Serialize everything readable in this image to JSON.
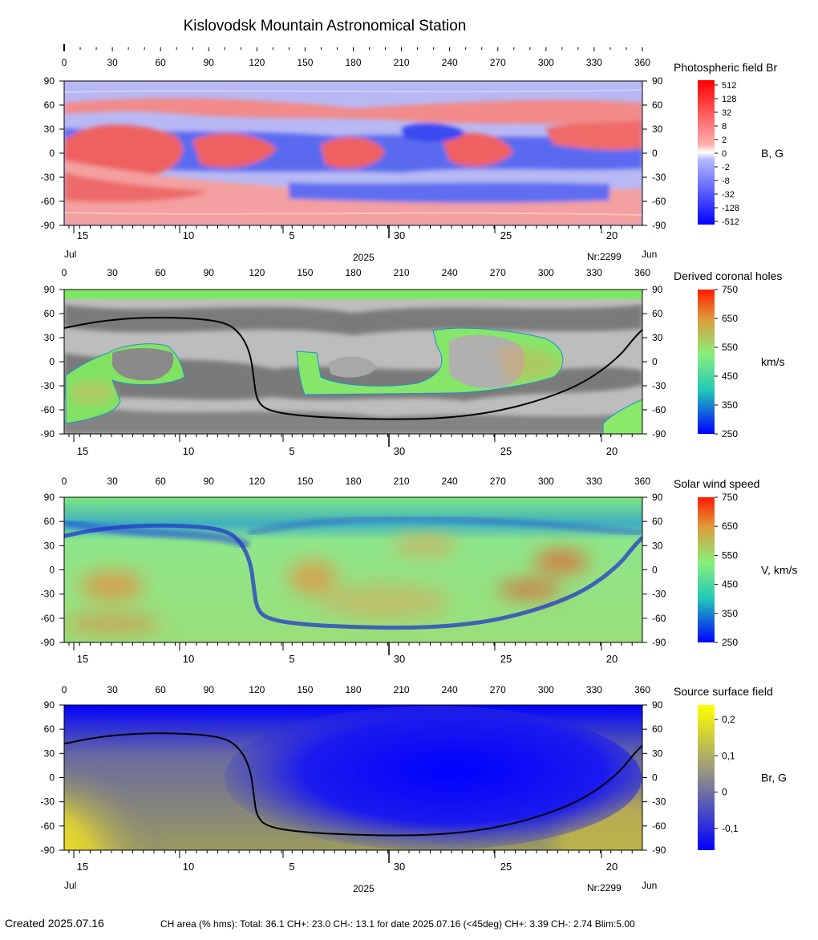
{
  "title": "Kislovodsk Mountain Astronomical Station",
  "chart_data": {
    "type": "heatmap",
    "x_top_ticks": [
      "0",
      "30",
      "60",
      "90",
      "120",
      "150",
      "180",
      "210",
      "240",
      "270",
      "300",
      "330",
      "360"
    ],
    "y_ticks": [
      "90",
      "60",
      "30",
      "0",
      "-30",
      "-60",
      "-90"
    ],
    "date_ticks": [
      "15",
      "10",
      "5",
      "30",
      "25",
      "20"
    ],
    "date_left": "Jul",
    "date_right": "Jun",
    "year": "2025",
    "rotation": "Nr:2299",
    "panels": [
      {
        "title": "Photospheric field Br",
        "unit": "B, G",
        "colorbar_ticks": [
          "512",
          "128",
          "32",
          "8",
          "2",
          "0",
          "-2",
          "-8",
          "-32",
          "-128",
          "-512"
        ],
        "xlim": [
          0,
          360
        ],
        "ylim": [
          -90,
          90
        ]
      },
      {
        "title": "Derived coronal holes",
        "unit": "km/s",
        "colorbar_ticks": [
          "750",
          "650",
          "550",
          "450",
          "350",
          "250"
        ],
        "xlim": [
          0,
          360
        ],
        "ylim": [
          -90,
          90
        ]
      },
      {
        "title": "Solar wind speed",
        "unit": "V, km/s",
        "colorbar_ticks": [
          "750",
          "650",
          "550",
          "450",
          "350",
          "250"
        ],
        "xlim": [
          0,
          360
        ],
        "ylim": [
          -90,
          90
        ]
      },
      {
        "title": "Source surface field",
        "unit": "Br, G",
        "colorbar_ticks": [
          "0,2",
          "0,1",
          "0",
          "-0,1"
        ],
        "xlim": [
          0,
          360
        ],
        "ylim": [
          -90,
          90
        ]
      }
    ],
    "neutral_line": {
      "x": [
        0,
        20,
        45,
        75,
        100,
        110,
        116,
        118,
        120,
        128,
        150,
        180,
        210,
        240,
        270,
        300,
        325,
        345,
        355,
        360
      ],
      "y": [
        42,
        50,
        55,
        55,
        50,
        35,
        10,
        -20,
        -50,
        -62,
        -68,
        -71,
        -72,
        -70,
        -62,
        -46,
        -25,
        5,
        30,
        40
      ]
    }
  },
  "footer": {
    "created": "Created  2025.07.16",
    "stats": "CH area (% hms): Total: 36.1 CH+: 23.0   CH-: 13.1 for date 2025.07.16 (<45deg) CH+: 3.39    CH-: 2.74 Blim:5.00"
  }
}
